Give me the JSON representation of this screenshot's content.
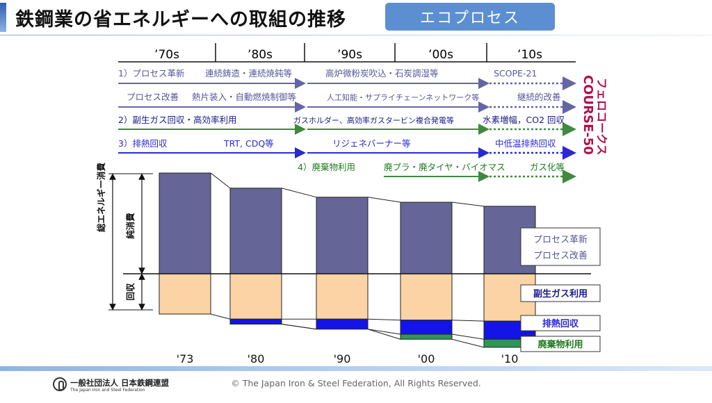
{
  "title": "鉄鋼業の省エネルギーへの取組の推移",
  "badge": "エコプロセス",
  "footer": {
    "copyright": "© The Japan Iron & Steel Federation, All Rights Reserved.",
    "logo_jp": "一般社団法人 日本鉄鋼連盟",
    "logo_en": "The Japan Iron and Steel Federation"
  },
  "timeline": {
    "decades": [
      "’70s",
      "’80s",
      "’90s",
      "’00s",
      "’10s"
    ],
    "lines": [
      {
        "color": "#6565a6",
        "items": [
          "1）プロセス革新",
          "連続鋳造・連続焼鈍等",
          "高炉微粉炭吹込・石炭調湿等",
          "SCOPE-21"
        ]
      },
      {
        "color": "#6565a6",
        "items": [
          "プロセス改善",
          "熱片装入・自動燃焼制御等",
          "人工知能・サプライチェーンネットワーク等",
          "継続的改善"
        ]
      },
      {
        "color": "#3f8a3f",
        "items": [
          "2）副生ガス回収・高効率利用",
          "ガスホルダー、高効率ガスタービン複合発電等",
          "水素増幅，CO2 回収"
        ]
      },
      {
        "color": "#2a2ad0",
        "items": [
          "3）排熱回収",
          "TRT, CDQ等",
          "リジェネバーナー等",
          "中低温排熱回収"
        ]
      },
      {
        "color": "#3f8a3f",
        "items": [
          "4）廃棄物利用",
          "廃プラ・廃タイヤ・バイオマス",
          "ガス化等"
        ]
      }
    ]
  },
  "side_label": {
    "course50": "COURSE-50",
    "ferro_coke": "フェロコークス"
  },
  "axis_labels": {
    "total": "総エネルギー消費",
    "net": "純消費",
    "recovery": "回収"
  },
  "legend": {
    "process": [
      "プロセス革新",
      "プロセス改善"
    ],
    "byproduct_gas": "副生ガス利用",
    "waste_heat": "排熱回収",
    "waste_use": "廃棄物利用"
  },
  "colors": {
    "net": "#656597",
    "byproduct_gas": "#fcd3a4",
    "waste_heat": "#1414e6",
    "waste_use": "#2f9656",
    "process_arrow": "#6565a6",
    "gas_arrow": "#3f8a3f",
    "heat_arrow": "#2a2ad0",
    "course50": "#b0104a"
  },
  "chart_data": {
    "type": "bar",
    "stacked": true,
    "baseline": "net consumption above, recovery below",
    "categories": [
      "'73",
      "'80",
      "'90",
      "'00",
      "'10"
    ],
    "series": [
      {
        "name": "純消費",
        "values": [
          100,
          85,
          76,
          71,
          67
        ]
      },
      {
        "name": "副生ガス利用",
        "values": [
          40,
          45,
          45,
          46,
          47
        ]
      },
      {
        "name": "排熱回収",
        "values": [
          0,
          5,
          10,
          14,
          18
        ]
      },
      {
        "name": "廃棄物利用",
        "values": [
          0,
          0,
          0,
          5,
          8
        ]
      }
    ]
  }
}
